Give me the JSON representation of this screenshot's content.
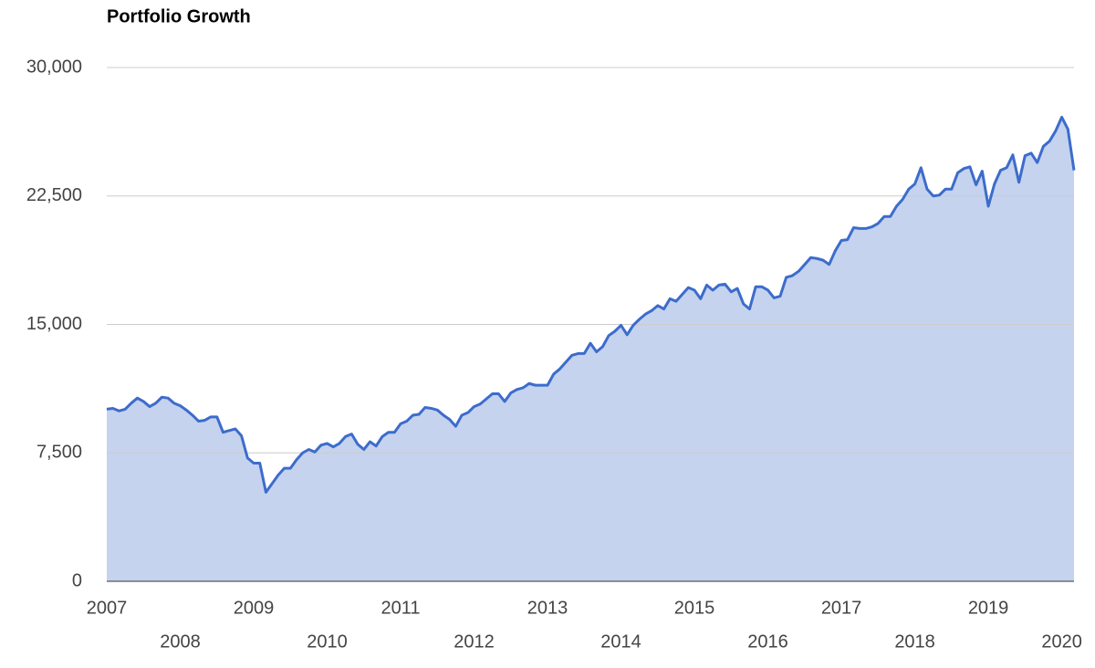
{
  "chart_data": {
    "type": "area",
    "title": "Portfolio Growth",
    "categories": [
      "2007",
      null,
      null,
      null,
      null,
      null,
      null,
      null,
      null,
      null,
      null,
      null,
      "2008",
      null,
      null,
      null,
      null,
      null,
      null,
      null,
      null,
      null,
      null,
      null,
      "2009",
      null,
      null,
      null,
      null,
      null,
      null,
      null,
      null,
      null,
      null,
      null,
      "2010",
      null,
      null,
      null,
      null,
      null,
      null,
      null,
      null,
      null,
      null,
      null,
      "2011",
      null,
      null,
      null,
      null,
      null,
      null,
      null,
      null,
      null,
      null,
      null,
      "2012",
      null,
      null,
      null,
      null,
      null,
      null,
      null,
      null,
      null,
      null,
      null,
      "2013",
      null,
      null,
      null,
      null,
      null,
      null,
      null,
      null,
      null,
      null,
      null,
      "2014",
      null,
      null,
      null,
      null,
      null,
      null,
      null,
      null,
      null,
      null,
      null,
      "2015",
      null,
      null,
      null,
      null,
      null,
      null,
      null,
      null,
      null,
      null,
      null,
      "2016",
      null,
      null,
      null,
      null,
      null,
      null,
      null,
      null,
      null,
      null,
      null,
      "2017",
      null,
      null,
      null,
      null,
      null,
      null,
      null,
      null,
      null,
      null,
      null,
      "2018",
      null,
      null,
      null,
      null,
      null,
      null,
      null,
      null,
      null,
      null,
      null,
      "2019",
      null,
      null,
      null,
      null,
      null,
      null,
      null,
      null,
      null,
      null,
      null,
      "2020",
      null,
      null
    ],
    "values": [
      10050,
      10100,
      9950,
      10050,
      10400,
      10700,
      10500,
      10200,
      10400,
      10750,
      10700,
      10400,
      10250,
      10000,
      9700,
      9350,
      9400,
      9600,
      9600,
      8700,
      8800,
      8900,
      8500,
      7200,
      6900,
      6900,
      5200,
      5700,
      6200,
      6600,
      6600,
      7100,
      7500,
      7700,
      7550,
      7950,
      8050,
      7850,
      8050,
      8450,
      8600,
      8000,
      7700,
      8150,
      7900,
      8450,
      8700,
      8700,
      9200,
      9350,
      9700,
      9750,
      10150,
      10100,
      10000,
      9700,
      9450,
      9050,
      9700,
      9850,
      10200,
      10350,
      10650,
      10950,
      10950,
      10500,
      11000,
      11200,
      11300,
      11550,
      11450,
      11450,
      11450,
      12100,
      12400,
      12800,
      13200,
      13300,
      13300,
      13900,
      13400,
      13700,
      14350,
      14600,
      14950,
      14400,
      14950,
      15300,
      15600,
      15800,
      16100,
      15900,
      16500,
      16350,
      16750,
      17150,
      17000,
      16500,
      17300,
      17000,
      17300,
      17350,
      16900,
      17100,
      16200,
      15900,
      17200,
      17200,
      17000,
      16550,
      16650,
      17750,
      17850,
      18100,
      18500,
      18900,
      18850,
      18750,
      18500,
      19300,
      19900,
      19950,
      20650,
      20600,
      20600,
      20700,
      20900,
      21300,
      21300,
      21900,
      22300,
      22900,
      23200,
      24150,
      22900,
      22500,
      22550,
      22900,
      22900,
      23850,
      24100,
      24200,
      23150,
      23950,
      21900,
      23200,
      24000,
      24150,
      24900,
      23300,
      24850,
      25000,
      24450,
      25400,
      25700,
      26300,
      27100,
      26400,
      24000
    ],
    "color": "#3c6ccc",
    "fill_color": "#c5d3ee",
    "ylim": [
      0,
      30000
    ],
    "yticks": [
      0,
      {
        "value": 7500,
        "label": "7,500"
      },
      {
        "value": 15000,
        "label": "15,000"
      },
      {
        "value": 22500,
        "label": "22,500"
      },
      {
        "value": 30000,
        "label": "30,000"
      }
    ],
    "grid": true
  }
}
